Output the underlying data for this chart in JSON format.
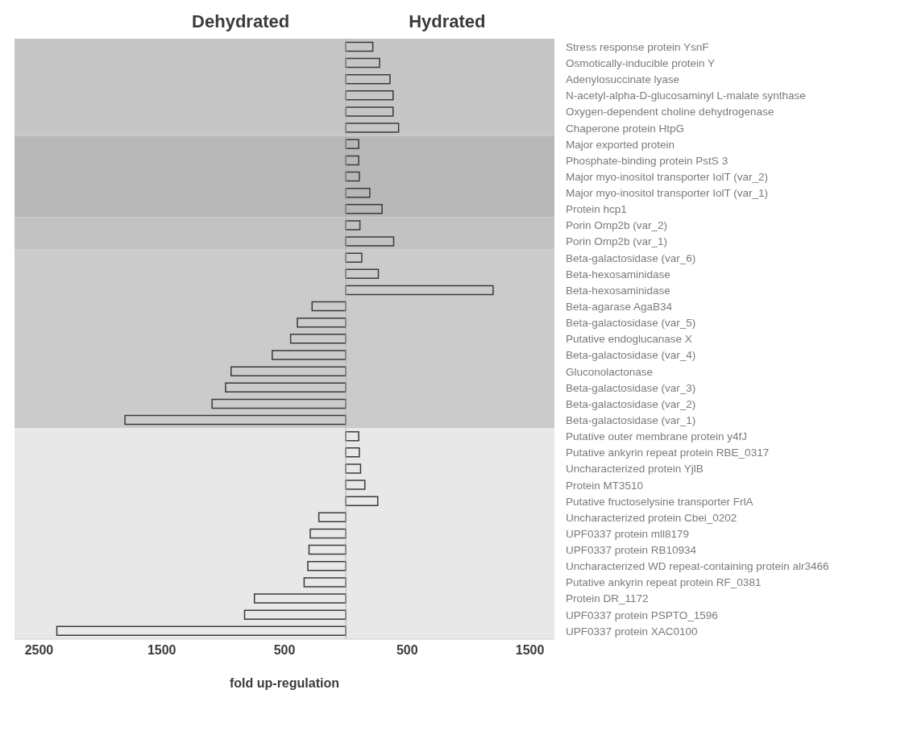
{
  "chart_data": {
    "type": "bar",
    "orientation": "horizontal",
    "xlabel": "fold up-regulation",
    "annotations": [
      "Dehydrated",
      "Hydrated"
    ],
    "categories": [
      "Stress response protein YsnF",
      "Osmotically-inducible protein Y",
      "Adenylosuccinate lyase",
      "N-acetyl-alpha-D-glucosaminyl L-malate synthase",
      "Oxygen-dependent choline dehydrogenase",
      "Chaperone protein HtpG",
      "Major exported protein",
      "Phosphate-binding protein PstS 3",
      "Major myo-inositol transporter IolT (var_2)",
      "Major myo-inositol transporter IolT (var_1)",
      "Protein hcp1",
      "Porin Omp2b (var_2)",
      "Porin Omp2b (var_1)",
      "Beta-galactosidase (var_6)",
      "Beta-hexosaminidase",
      "Beta-hexosaminidase",
      "Beta-agarase AgaB34",
      "Beta-galactosidase (var_5)",
      "Putative endoglucanase X",
      "Beta-galactosidase  (var_4)",
      "Gluconolactonase",
      "Beta-galactosidase (var_3)",
      "Beta-galactosidase (var_2)",
      "Beta-galactosidase (var_1)",
      "Putative outer membrane protein y4fJ",
      "Putative ankyrin repeat protein RBE_0317",
      "Uncharacterized protein YjlB",
      "Protein MT3510",
      "Putative fructoselysine transporter FrlA",
      "Uncharacterized protein Cbei_0202",
      "UPF0337 protein mll8179",
      "UPF0337 protein RB10934",
      "Uncharacterized WD repeat-containing protein alr3466",
      "Putative ankyrin repeat protein RF_0381",
      "Protein DR_1172",
      "UPF0337 protein PSPTO_1596",
      "UPF0337 protein XAC0100"
    ],
    "values": [
      220,
      275,
      360,
      385,
      385,
      430,
      105,
      105,
      110,
      195,
      295,
      115,
      390,
      130,
      265,
      1200,
      -275,
      -395,
      -450,
      -600,
      -935,
      -980,
      -1090,
      -1800,
      105,
      110,
      120,
      155,
      260,
      -220,
      -290,
      -300,
      -310,
      -340,
      -745,
      -825,
      -2355
    ],
    "color": "#3a3a3a",
    "xlim": [
      -2700,
      1700
    ],
    "xticks": [
      {
        "value": -2500,
        "label": "2500"
      },
      {
        "value": -1500,
        "label": "1500"
      },
      {
        "value": -500,
        "label": "500"
      },
      500,
      1500
    ],
    "ref_lines": [
      {
        "axis": "x",
        "value": 0,
        "color": "#b0b0b0"
      }
    ],
    "bands": [
      {
        "axis": "y",
        "from": "Stress response protein YsnF",
        "to": "Chaperone protein HtpG",
        "color": "#c6c6c6"
      },
      {
        "axis": "y",
        "from": "Major exported protein",
        "to": "Protein hcp1",
        "color": "#b8b8b8"
      },
      {
        "axis": "y",
        "from": "Porin Omp2b (var_2)",
        "to": "Porin Omp2b (var_1)",
        "color": "#c2c2c2"
      },
      {
        "axis": "y",
        "from": "Beta-galactosidase (var_6)",
        "to": "Beta-galactosidase (var_1)",
        "color": "#cbcbcb"
      },
      {
        "axis": "y",
        "from": "Putative outer membrane protein y4fJ",
        "to": "UPF0337 protein XAC0100",
        "color": "#e8e8e8"
      }
    ],
    "grid": false,
    "legend": false
  }
}
